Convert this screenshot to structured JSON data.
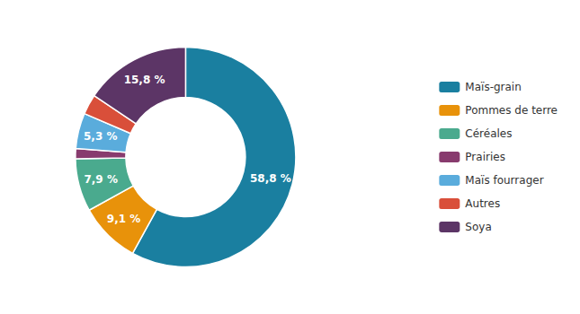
{
  "chart_data": {
    "type": "pie",
    "categories": [
      "Maïs-grain",
      "Pommes de terre",
      "Céréales",
      "Prairies",
      "Maïs fourrager",
      "Autres",
      "Soya"
    ],
    "values": [
      58.8,
      9.1,
      7.9,
      1.5,
      5.3,
      3.0,
      15.8
    ],
    "value_labels": [
      "58,8 %",
      "9,1 %",
      "7,9 %",
      null,
      "5,3 %",
      null,
      "15,8 %"
    ],
    "colors": [
      "#1a7fa0",
      "#e8920a",
      "#4aaa8e",
      "#883b6e",
      "#5aacdc",
      "#d94f3a",
      "#5c3566"
    ],
    "data_labels": true,
    "legend": "right"
  }
}
